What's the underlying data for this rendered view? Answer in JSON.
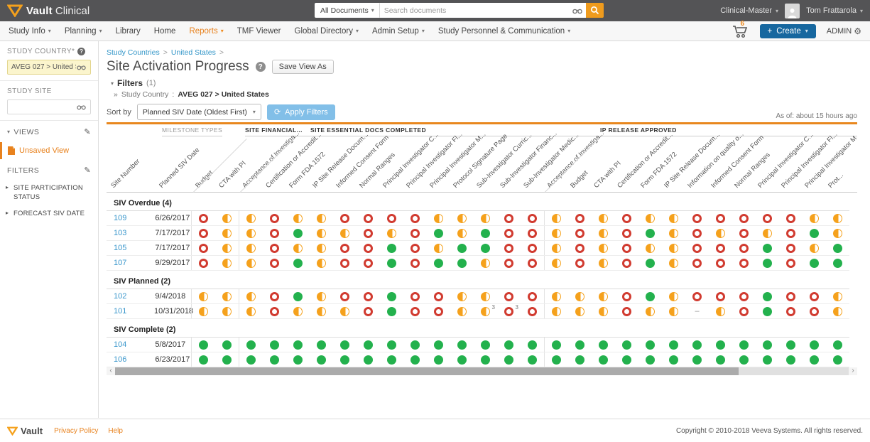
{
  "topbar": {
    "brand": {
      "name": "Vault",
      "suffix": "Clinical"
    },
    "search": {
      "scope": "All Documents",
      "placeholder": "Search documents"
    },
    "vault_selector": "Clinical-Master",
    "user_name": "Tom Frattarola"
  },
  "nav": {
    "items": [
      {
        "label": "Study Info",
        "caret": true,
        "active": false
      },
      {
        "label": "Planning",
        "caret": true,
        "active": false
      },
      {
        "label": "Library",
        "caret": false,
        "active": false
      },
      {
        "label": "Home",
        "caret": false,
        "active": false
      },
      {
        "label": "Reports",
        "caret": true,
        "active": true
      },
      {
        "label": "TMF Viewer",
        "caret": false,
        "active": false
      },
      {
        "label": "Global Directory",
        "caret": true,
        "active": false
      },
      {
        "label": "Admin Setup",
        "caret": true,
        "active": false
      },
      {
        "label": "Study Personnel & Communication",
        "caret": true,
        "active": false
      }
    ],
    "cart_count": "6",
    "create_label": "Create",
    "admin_label": "ADMIN"
  },
  "sidebar": {
    "study_country": {
      "label": "STUDY COUNTRY*",
      "value": "AVEG 027 > United States"
    },
    "study_site": {
      "label": "STUDY SITE",
      "value": ""
    },
    "views": {
      "label": "VIEWS",
      "items": [
        "Unsaved View"
      ]
    },
    "filters": {
      "label": "FILTERS",
      "items": [
        "SITE PARTICIPATION STATUS",
        "FORECAST SIV DATE"
      ]
    }
  },
  "main": {
    "breadcrumb": [
      "Study Countries",
      "United States"
    ],
    "title": "Site Activation Progress",
    "save_view_as": "Save View As",
    "filters_toggle": "Filters",
    "filters_count": "(1)",
    "filter_summary_label": "Study Country",
    "filter_summary_value": "AVEG 027 > United States",
    "sort_by_label": "Sort by",
    "sort_value": "Planned SIV Date (Oldest First)",
    "apply_filters": "Apply Filters",
    "as_of": "As of: about 15 hours ago"
  },
  "table": {
    "corner_label": "MILESTONE TYPES",
    "row_headers": [
      "Site Number",
      "Planned SIV Date"
    ],
    "status_colors": {
      "not_started_red": "#d13b30",
      "in_progress_orange": "#f5a11c",
      "complete_green": "#23b14d"
    },
    "groups": [
      {
        "label": "SITE FINANCIAL...",
        "columns": [
          "Budget",
          "CTA with PI"
        ]
      },
      {
        "label": "SITE ESSENTIAL DOCS COMPLETED",
        "columns": [
          "Acceptance of Investiga...",
          "Certification or Accredit...",
          "Form FDA 1572",
          "IP Site Release Docum...",
          "Informed Consent Form",
          "Normal Ranges",
          "Principal Investigator C...",
          "Principal Investigator Fl...",
          "Principal Investigator M...",
          "Protocol Signature Page",
          "Sub-Investigator Curric...",
          "Sub-Investigator Financ...",
          "Sub-Investigator Medic..."
        ]
      },
      {
        "label": "IP RELEASE APPROVED",
        "columns": [
          "Acceptance of Investiga...",
          "Budget",
          "CTA with PI",
          "Certification or Accredit...",
          "Form FDA 1572",
          "IP Site Release Docum...",
          "Information on quality o...",
          "Informed Consent Form",
          "Normal Ranges",
          "Principal Investigator C...",
          "Principal Investigator Fl...",
          "Principal Investigator M...",
          "Prot..."
        ]
      }
    ],
    "sections": [
      {
        "label": "SIV Overdue (4)",
        "rows": [
          {
            "site": "109",
            "date": "6/26/2017",
            "statuses": [
              [
                "r",
                "h"
              ],
              [
                "h",
                "r",
                "h",
                "h",
                "r",
                "r",
                "r",
                "r",
                "h",
                "h",
                "h",
                "r",
                "r"
              ],
              [
                "h",
                "r",
                "h",
                "r",
                "h",
                "h",
                "r",
                "r",
                "r",
                "r",
                "r",
                "h",
                "h"
              ]
            ]
          },
          {
            "site": "103",
            "date": "7/17/2017",
            "statuses": [
              [
                "r",
                "h"
              ],
              [
                "h",
                "r",
                "g",
                "h",
                "h",
                "r",
                "h",
                "r",
                "g",
                "h",
                "g",
                "r",
                "r"
              ],
              [
                "h",
                "r",
                "h",
                "r",
                "g",
                "h",
                "r",
                "h",
                "r",
                "h",
                "r",
                "g",
                "h"
              ]
            ]
          },
          {
            "site": "105",
            "date": "7/17/2017",
            "statuses": [
              [
                "r",
                "h"
              ],
              [
                "h",
                "r",
                "h",
                "h",
                "r",
                "r",
                "g",
                "r",
                "h",
                "g",
                "g",
                "r",
                "r"
              ],
              [
                "h",
                "r",
                "h",
                "r",
                "h",
                "h",
                "r",
                "r",
                "r",
                "g",
                "r",
                "h",
                "g"
              ]
            ]
          },
          {
            "site": "107",
            "date": "9/29/2017",
            "statuses": [
              [
                "r",
                "h"
              ],
              [
                "h",
                "r",
                "g",
                "h",
                "r",
                "r",
                "g",
                "r",
                "g",
                "g",
                "h",
                "r",
                "r"
              ],
              [
                "h",
                "r",
                "h",
                "r",
                "g",
                "h",
                "r",
                "r",
                "r",
                "g",
                "r",
                "g",
                "g"
              ]
            ]
          }
        ]
      },
      {
        "label": "SIV Planned (2)",
        "rows": [
          {
            "site": "102",
            "date": "9/4/2018",
            "statuses": [
              [
                "h",
                "h"
              ],
              [
                "h",
                "r",
                "g",
                "h",
                "r",
                "r",
                "g",
                "r",
                "r",
                "h",
                "h",
                "r",
                "r"
              ],
              [
                "h",
                "h",
                "h",
                "r",
                "g",
                "h",
                "r",
                "r",
                "r",
                "g",
                "r",
                "r",
                "h"
              ]
            ]
          },
          {
            "site": "101",
            "date": "10/31/2018",
            "statuses": [
              [
                "h",
                "h"
              ],
              [
                "h",
                "r",
                "h",
                "h",
                "h",
                "r",
                "g",
                "r",
                "r",
                "h",
                "h3",
                "r3",
                "r"
              ],
              [
                "h",
                "h",
                "h",
                "r",
                "h",
                "h",
                "-",
                "h",
                "r",
                "g",
                "r",
                "r",
                "h"
              ]
            ]
          }
        ]
      },
      {
        "label": "SIV Complete (2)",
        "rows": [
          {
            "site": "104",
            "date": "5/8/2017",
            "statuses": [
              [
                "g",
                "g"
              ],
              [
                "g",
                "g",
                "g",
                "g",
                "g",
                "g",
                "g",
                "g",
                "g",
                "g",
                "g",
                "g",
                "g"
              ],
              [
                "g",
                "g",
                "g",
                "g",
                "g",
                "g",
                "g",
                "g",
                "g",
                "g",
                "g",
                "g",
                "g"
              ]
            ]
          },
          {
            "site": "106",
            "date": "6/23/2017",
            "statuses": [
              [
                "g",
                "g"
              ],
              [
                "g",
                "g",
                "g",
                "g",
                "g",
                "g",
                "g",
                "g",
                "g",
                "g",
                "g",
                "g",
                "g"
              ],
              [
                "g",
                "g",
                "g",
                "g",
                "g",
                "g",
                "g",
                "g",
                "g",
                "g",
                "g",
                "g",
                "g"
              ]
            ]
          }
        ]
      }
    ]
  },
  "footer": {
    "brand": "Vault",
    "links": [
      "Privacy Policy",
      "Help"
    ],
    "copyright": "Copyright © 2010-2018 Veeva Systems. All rights reserved."
  }
}
